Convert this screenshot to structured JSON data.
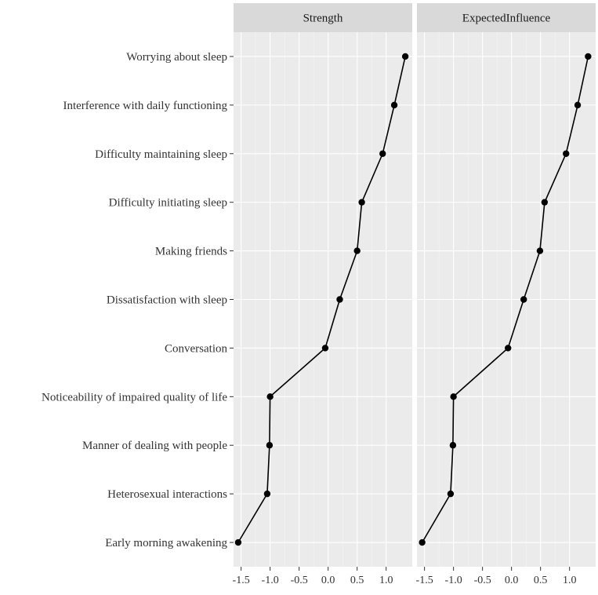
{
  "chart_data": {
    "type": "line",
    "panels": [
      {
        "title": "Strength",
        "values": [
          1.33,
          1.14,
          0.94,
          0.58,
          0.5,
          0.2,
          -0.05,
          -1.0,
          -1.01,
          -1.05,
          -1.55
        ]
      },
      {
        "title": "ExpectedInfluence",
        "values": [
          1.32,
          1.14,
          0.94,
          0.57,
          0.49,
          0.21,
          -0.06,
          -1.0,
          -1.01,
          -1.05,
          -1.54
        ]
      }
    ],
    "categories": [
      "Worrying about sleep",
      "Interference with daily functioning",
      "Difficulty maintaining sleep",
      "Difficulty initiating sleep",
      "Making friends",
      "Dissatisfaction with sleep",
      "Conversation",
      "Noticeability of impaired quality of life",
      "Manner of dealing with people",
      "Heterosexual interactions",
      "Early morning awakening"
    ],
    "x_ticks": [
      -1.5,
      -1.0,
      -0.5,
      0.0,
      0.5,
      1.0
    ],
    "x_tick_labels": [
      "-1.5",
      "-1.0",
      "-0.5",
      "0.0",
      "0.5",
      "1.0"
    ],
    "xlim": [
      -1.63,
      1.45
    ],
    "grid": true,
    "legend": "none"
  }
}
